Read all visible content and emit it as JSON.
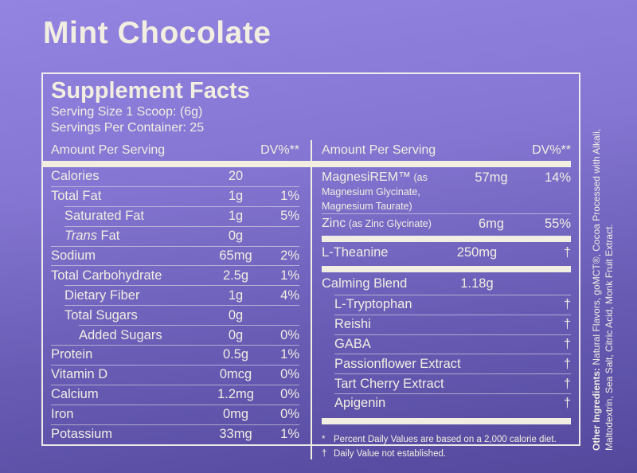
{
  "title": "Mint Chocolate",
  "panel": {
    "heading": "Supplement Facts",
    "serving_size": "Serving Size 1 Scoop: (6g)",
    "servings_per_container": "Servings Per Container: 25",
    "column_header": {
      "label": "Amount Per Serving",
      "dv": "DV%**"
    }
  },
  "left_column": {
    "rows": [
      {
        "label": "Calories",
        "amount": "20",
        "dv": ""
      },
      {
        "label": "Total Fat",
        "amount": "1g",
        "dv": "1%"
      },
      {
        "label": "Saturated Fat",
        "amount": "1g",
        "dv": "5%"
      },
      {
        "label_italic": "Trans",
        "label_rest": " Fat",
        "amount": "0g",
        "dv": ""
      },
      {
        "label": "Sodium",
        "amount": "65mg",
        "dv": "2%"
      },
      {
        "label": "Total Carbohydrate",
        "amount": "2.5g",
        "dv": "1%"
      },
      {
        "label": "Dietary Fiber",
        "amount": "1g",
        "dv": "4%"
      },
      {
        "label": "Total Sugars",
        "amount": "0g",
        "dv": ""
      },
      {
        "label": "Added Sugars",
        "amount": "0g",
        "dv": "0%"
      },
      {
        "label": "Protein",
        "amount": "0.5g",
        "dv": "1%"
      },
      {
        "label": "Vitamin D",
        "amount": "0mcg",
        "dv": "0%"
      },
      {
        "label": "Calcium",
        "amount": "1.2mg",
        "dv": "0%"
      },
      {
        "label": "Iron",
        "amount": "0mg",
        "dv": "0%"
      },
      {
        "label": "Potassium",
        "amount": "33mg",
        "dv": "1%"
      }
    ]
  },
  "right_column": {
    "magnesirem": {
      "name": "MagnesiREM™",
      "detail": " (as Magnesium Glycinate, Magnesium Taurate)",
      "amount": "57mg",
      "dv": "14%"
    },
    "zinc": {
      "name": "Zinc",
      "detail": " (as Zinc Glycinate)",
      "amount": "6mg",
      "dv": "55%"
    },
    "l_theanine": {
      "label": "L-Theanine",
      "amount": "250mg",
      "dv": "†"
    },
    "calming_blend": {
      "label": "Calming Blend",
      "amount": "1.18g",
      "dv": ""
    },
    "blend_items": [
      {
        "label": "L-Tryptophan",
        "dv": "†"
      },
      {
        "label": "Reishi",
        "dv": "†"
      },
      {
        "label": "GABA",
        "dv": "†"
      },
      {
        "label": "Passionflower Extract",
        "dv": "†"
      },
      {
        "label": "Tart Cherry Extract",
        "dv": "†"
      },
      {
        "label": "Apigenin",
        "dv": "†"
      }
    ],
    "footnotes": [
      {
        "symbol": "*",
        "text": "Percent Daily Values are based on a 2,000 calorie diet."
      },
      {
        "symbol": "†",
        "text": "Daily Value not established."
      }
    ]
  },
  "side_text": {
    "lead": "Other Ingredients:",
    "line1_rest": " Natural Flavors, goMCT®, Cocoa Processed with Alkali,",
    "line2": "Maltodextrin, Sea Salt, Citric Acid, Monk Fruit Extract."
  },
  "colors": {
    "background_top": "#9484e2",
    "background_bottom": "#53489c",
    "text_cream": "#f2eee1"
  }
}
